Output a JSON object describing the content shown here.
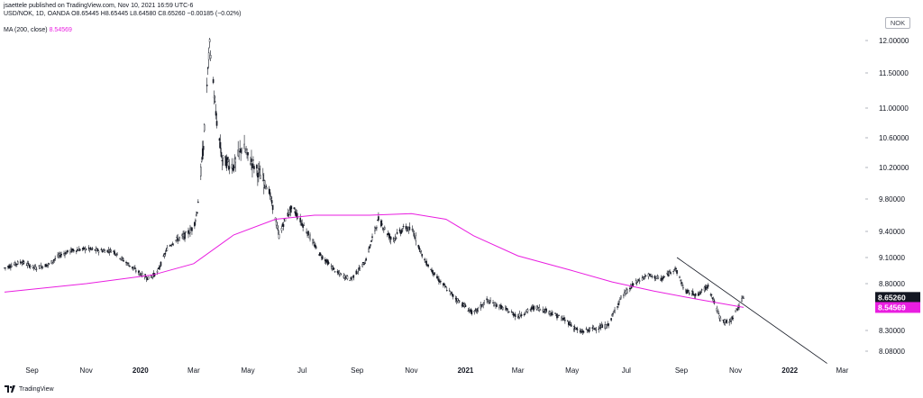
{
  "header": {
    "published": "jsaettele published on TradingView.com, Nov 10, 2021 16:59 UTC-6",
    "symbol_line": "USD/NOK, 1D, OANDA  O8.65445  H8.65445  L8.64580  C8.65260  −0.00185 (−0.02%)",
    "ma_label": "MA (200, close)",
    "ma_value": "8.54569",
    "currency": "NOK"
  },
  "footer": {
    "brand": "TradingView"
  },
  "colors": {
    "candles": "#131722",
    "ma_line": "#e91ee0",
    "trendline": "#131722",
    "price_tag_bg": "#131722",
    "ma_tag_bg": "#e91ee0"
  },
  "chart_data": {
    "type": "candlestick",
    "title": "USD/NOK, 1D, OANDA",
    "ylim": [
      8.02,
      12.15
    ],
    "y_ticks": [
      "12.00000",
      "11.50000",
      "11.00000",
      "10.60000",
      "10.20000",
      "9.80000",
      "9.40000",
      "9.10000",
      "8.80000",
      "8.30000",
      "8.08000"
    ],
    "y_tick_values": [
      12.0,
      11.5,
      11.0,
      10.6,
      10.2,
      9.8,
      9.4,
      9.1,
      8.8,
      8.3,
      8.08
    ],
    "x_labels": [
      "Sep",
      "Nov",
      "2020",
      "Mar",
      "May",
      "Jul",
      "Sep",
      "Nov",
      "2021",
      "Mar",
      "May",
      "Jul",
      "Sep",
      "Nov",
      "2022",
      "Mar"
    ],
    "x_label_dates": [
      "2019-09-01",
      "2019-11-01",
      "2020-01-01",
      "2020-03-01",
      "2020-05-01",
      "2020-07-01",
      "2020-09-01",
      "2020-11-01",
      "2021-01-01",
      "2021-03-01",
      "2021-05-01",
      "2021-07-01",
      "2021-09-01",
      "2021-11-01",
      "2022-01-01",
      "2022-03-01"
    ],
    "x_range": [
      "2019-08-01",
      "2022-03-25"
    ],
    "price_close": [
      [
        "2019-08-01",
        8.98
      ],
      [
        "2019-08-20",
        9.05
      ],
      [
        "2019-09-05",
        8.98
      ],
      [
        "2019-09-20",
        9.02
      ],
      [
        "2019-10-01",
        9.12
      ],
      [
        "2019-10-15",
        9.18
      ],
      [
        "2019-11-01",
        9.2
      ],
      [
        "2019-11-15",
        9.18
      ],
      [
        "2019-12-01",
        9.18
      ],
      [
        "2019-12-15",
        9.05
      ],
      [
        "2019-12-31",
        8.92
      ],
      [
        "2020-01-10",
        8.86
      ],
      [
        "2020-01-20",
        8.93
      ],
      [
        "2020-02-01",
        9.22
      ],
      [
        "2020-02-10",
        9.3
      ],
      [
        "2020-02-20",
        9.35
      ],
      [
        "2020-03-01",
        9.45
      ],
      [
        "2020-03-05",
        9.65
      ],
      [
        "2020-03-12",
        10.5
      ],
      [
        "2020-03-19",
        11.95
      ],
      [
        "2020-03-26",
        10.9
      ],
      [
        "2020-04-02",
        10.3
      ],
      [
        "2020-04-15",
        10.22
      ],
      [
        "2020-04-25",
        10.5
      ],
      [
        "2020-05-01",
        10.35
      ],
      [
        "2020-05-15",
        10.1
      ],
      [
        "2020-05-25",
        9.9
      ],
      [
        "2020-06-05",
        9.35
      ],
      [
        "2020-06-12",
        9.55
      ],
      [
        "2020-06-20",
        9.7
      ],
      [
        "2020-07-01",
        9.5
      ],
      [
        "2020-07-20",
        9.15
      ],
      [
        "2020-08-10",
        8.92
      ],
      [
        "2020-08-25",
        8.85
      ],
      [
        "2020-09-10",
        9.05
      ],
      [
        "2020-09-25",
        9.55
      ],
      [
        "2020-10-10",
        9.3
      ],
      [
        "2020-10-25",
        9.45
      ],
      [
        "2020-11-03",
        9.4
      ],
      [
        "2020-11-15",
        9.08
      ],
      [
        "2020-12-01",
        8.85
      ],
      [
        "2020-12-20",
        8.65
      ],
      [
        "2021-01-10",
        8.48
      ],
      [
        "2021-01-25",
        8.62
      ],
      [
        "2021-02-10",
        8.55
      ],
      [
        "2021-03-01",
        8.45
      ],
      [
        "2021-03-20",
        8.55
      ],
      [
        "2021-04-05",
        8.5
      ],
      [
        "2021-04-25",
        8.4
      ],
      [
        "2021-05-10",
        8.28
      ],
      [
        "2021-05-25",
        8.32
      ],
      [
        "2021-06-10",
        8.35
      ],
      [
        "2021-06-25",
        8.65
      ],
      [
        "2021-07-10",
        8.8
      ],
      [
        "2021-07-25",
        8.9
      ],
      [
        "2021-08-10",
        8.85
      ],
      [
        "2021-08-25",
        8.98
      ],
      [
        "2021-09-05",
        8.72
      ],
      [
        "2021-09-20",
        8.68
      ],
      [
        "2021-10-01",
        8.78
      ],
      [
        "2021-10-15",
        8.42
      ],
      [
        "2021-10-25",
        8.38
      ],
      [
        "2021-11-10",
        8.6526
      ]
    ],
    "moving_average": {
      "name": "MA (200, close)",
      "points": [
        [
          "2019-08-01",
          8.71
        ],
        [
          "2019-11-01",
          8.8
        ],
        [
          "2020-01-15",
          8.9
        ],
        [
          "2020-03-01",
          9.03
        ],
        [
          "2020-04-15",
          9.36
        ],
        [
          "2020-06-01",
          9.55
        ],
        [
          "2020-07-15",
          9.6
        ],
        [
          "2020-09-15",
          9.6
        ],
        [
          "2020-11-01",
          9.62
        ],
        [
          "2020-12-10",
          9.55
        ],
        [
          "2021-01-10",
          9.35
        ],
        [
          "2021-03-01",
          9.12
        ],
        [
          "2021-05-01",
          8.95
        ],
        [
          "2021-06-15",
          8.82
        ],
        [
          "2021-08-01",
          8.72
        ],
        [
          "2021-09-15",
          8.64
        ],
        [
          "2021-11-10",
          8.54569
        ]
      ]
    },
    "trendline": {
      "start": [
        "2021-08-27",
        9.1
      ],
      "end": [
        "2022-02-12",
        7.95
      ]
    },
    "last_price": "8.65260",
    "last_price_value": 8.6526,
    "ma_last": "8.54569",
    "ma_last_value": 8.54569,
    "grid": false
  }
}
